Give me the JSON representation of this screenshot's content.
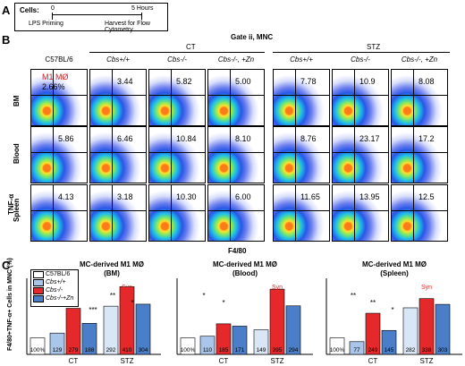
{
  "panel_labels": {
    "a": "A",
    "b": "B",
    "c": "C"
  },
  "timeline": {
    "cells_label": "Cells:",
    "t0": "0",
    "t5": "5 Hours",
    "start_event": "LPS Priming",
    "end_event": "Harvest for Flow Cytometry"
  },
  "flow": {
    "gate_title": "Gate ii, MNC",
    "group_ct": "CT",
    "group_stz": "STZ",
    "columns": [
      "C57BL/6",
      "Cbs+/+",
      "Cbs-/-",
      "Cbs-/-, +Zn",
      "Cbs+/+",
      "Cbs-/-",
      "Cbs-/-, +Zn"
    ],
    "rows": [
      "BM",
      "Blood",
      "Spleen"
    ],
    "m1_label": "M1 MØ",
    "y_axis": "TNF-α",
    "x_axis": "F4/80",
    "values": [
      [
        "2.66%",
        "3.44",
        "5.82",
        "5.00",
        "7.78",
        "10.9",
        "8.08"
      ],
      [
        "5.86",
        "6.46",
        "10.84",
        "8.10",
        "8.76",
        "23.17",
        "17.2"
      ],
      [
        "4.13",
        "3.18",
        "10.30",
        "6.00",
        "11.65",
        "13.95",
        "12.5"
      ]
    ]
  },
  "legend": {
    "items": [
      "C57BL/6",
      "Cbs+/+",
      "Cbs-/-",
      "Cbs-/-+Zn"
    ],
    "colors": [
      "#ffffff",
      "#a9c6ea",
      "#e5292b",
      "#4a7ec8"
    ]
  },
  "chart_data": [
    {
      "type": "bar",
      "title": "MC-derived M1 MØ",
      "subtitle": "(BM)",
      "ylabel": "F4/80+TNF-α+ Cells in MNC (%)",
      "groups": [
        "",
        "CT",
        "STZ"
      ],
      "categories": [
        "C57BL/6",
        "Cbs+/+",
        "Cbs-/-",
        "Cbs-/-+Zn",
        "Cbs+/+",
        "Cbs-/-",
        "Cbs-/-+Zn"
      ],
      "values": [
        100,
        129,
        279,
        188,
        292,
        410,
        304
      ],
      "bar_labels": [
        "100%",
        "129",
        "279",
        "188",
        "292",
        "410",
        "304"
      ],
      "annotations": [
        "*",
        "**",
        "***",
        "**",
        "*",
        "Syn"
      ]
    },
    {
      "type": "bar",
      "title": "MC-derived M1 MØ",
      "subtitle": "(Blood)",
      "groups": [
        "",
        "CT",
        "STZ"
      ],
      "categories": [
        "C57BL/6",
        "Cbs+/+",
        "Cbs-/-",
        "Cbs-/-+Zn",
        "Cbs+/+",
        "Cbs-/-",
        "Cbs-/-+Zn"
      ],
      "values": [
        100,
        110,
        185,
        171,
        149,
        395,
        294
      ],
      "bar_labels": [
        "100%",
        "110",
        "185",
        "171",
        "149",
        "395",
        "294"
      ],
      "annotations": [
        "*",
        "*",
        "Syn"
      ]
    },
    {
      "type": "bar",
      "title": "MC-derived M1 MØ",
      "subtitle": "(Spleen)",
      "groups": [
        "",
        "CT",
        "STZ"
      ],
      "categories": [
        "C57BL/6",
        "Cbs+/+",
        "Cbs-/-",
        "Cbs-/-+Zn",
        "Cbs+/+",
        "Cbs-/-",
        "Cbs-/-+Zn"
      ],
      "values": [
        100,
        77,
        249,
        145,
        282,
        338,
        303
      ],
      "bar_labels": [
        "100%",
        "77",
        "249",
        "145",
        "282",
        "338",
        "303"
      ],
      "annotations": [
        "**",
        "**",
        "*",
        "Syn"
      ]
    }
  ]
}
